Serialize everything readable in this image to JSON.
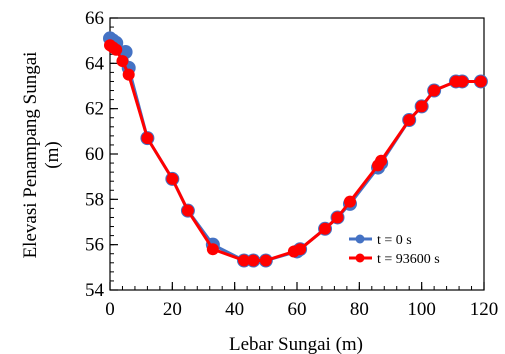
{
  "chart_data": {
    "type": "line",
    "xlabel": "Lebar Sungai (m)",
    "ylabel_lines": [
      "Elevasi Penampang Sungai",
      "(m)"
    ],
    "xlim": [
      0,
      120
    ],
    "ylim": [
      54,
      66
    ],
    "xticks": [
      "0",
      "20",
      "40",
      "60",
      "80",
      "100",
      "120"
    ],
    "yticks": [
      "54",
      "56",
      "58",
      "60",
      "62",
      "64",
      "66"
    ],
    "grid": false,
    "legend_position": "lower-right",
    "series": [
      {
        "name": "t = 0 s",
        "color": "#4472c4",
        "x": [
          0,
          1,
          2,
          5,
          6,
          12,
          20,
          25,
          33,
          43,
          46,
          50,
          60,
          61,
          69,
          73,
          77,
          86,
          87,
          96,
          100,
          104,
          111,
          113,
          119
        ],
        "y": [
          65.1,
          65.0,
          64.9,
          64.5,
          63.8,
          60.7,
          58.9,
          57.5,
          56.0,
          55.3,
          55.3,
          55.3,
          55.7,
          55.8,
          56.7,
          57.2,
          57.8,
          59.4,
          59.6,
          61.5,
          62.1,
          62.8,
          63.2,
          63.2,
          63.2
        ]
      },
      {
        "name": "t = 93600 s",
        "color": "#ff0000",
        "x": [
          0,
          1,
          2,
          4,
          6,
          12,
          20,
          25,
          33,
          43,
          46,
          50,
          59,
          61,
          69,
          73,
          77,
          86,
          87,
          96,
          100,
          104,
          111,
          113,
          119
        ],
        "y": [
          64.8,
          64.7,
          64.6,
          64.1,
          63.5,
          60.7,
          58.9,
          57.5,
          55.8,
          55.3,
          55.3,
          55.3,
          55.7,
          55.8,
          56.7,
          57.2,
          57.9,
          59.5,
          59.7,
          61.5,
          62.1,
          62.8,
          63.2,
          63.2,
          63.2
        ]
      }
    ]
  }
}
